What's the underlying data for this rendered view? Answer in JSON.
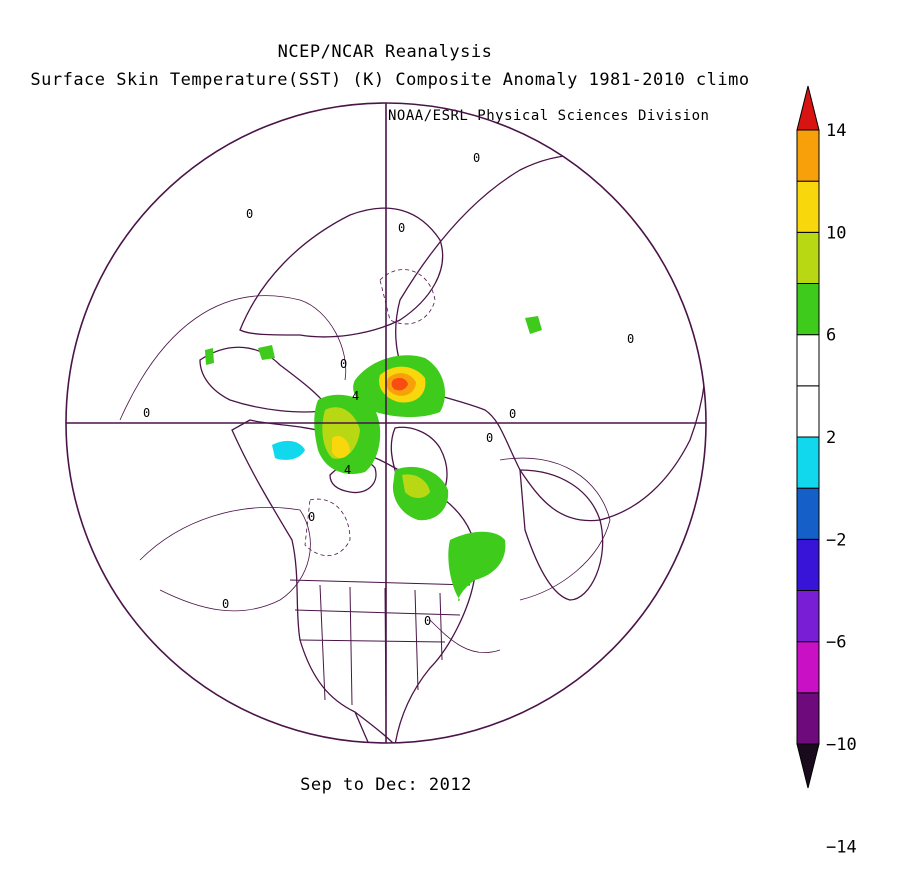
{
  "titles": {
    "line1": "NCEP/NCAR Reanalysis",
    "line2": "Surface Skin Temperature(SST) (K) Composite Anomaly 1981-2010 climo",
    "credit": "NOAA/ESRL Physical Sciences Division",
    "period": "Sep to Dec: 2012"
  },
  "map": {
    "projection": "north-polar-stereographic",
    "contour_labels": [
      "0",
      "0",
      "0",
      "0",
      "0",
      "0",
      "0",
      "0",
      "0",
      "0",
      "0",
      "4",
      "4"
    ]
  },
  "colorbar": {
    "orientation": "vertical",
    "levels": [
      -14,
      -12,
      -10,
      -8,
      -6,
      -4,
      -2,
      2,
      4,
      6,
      8,
      10,
      12,
      14
    ],
    "tick_labels": [
      "14",
      "10",
      "6",
      "2",
      "-2",
      "-6",
      "-10",
      "-14"
    ],
    "colors": [
      "#6e0a7c",
      "#c910c4",
      "#7a1ed6",
      "#3714d8",
      "#1460c8",
      "#12d8ee",
      "#ffffff",
      "#ffffff",
      "#3ecb1c",
      "#b8d814",
      "#f8d80c",
      "#f8a00a",
      "#f84c10",
      "#d81412"
    ],
    "colors_order": "bottom-to-top"
  }
}
